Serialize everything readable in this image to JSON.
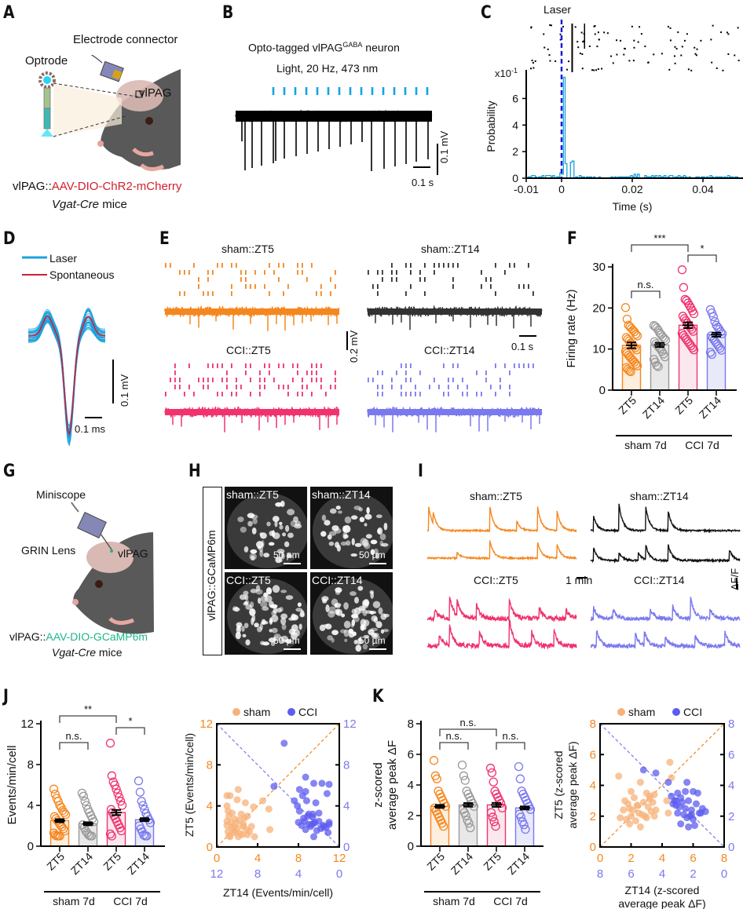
{
  "colors": {
    "sham_zt5": "#f5871f",
    "sham_zt14": "#333333",
    "cci_zt5": "#f0336e",
    "cci_zt14": "#7b79ee",
    "laser_blue": "#1ca2dc",
    "spont_red": "#cc1f3a",
    "laser_line": "#1a1adb",
    "gcamp_green": "#1fb58a",
    "chr2_red": "#d0202e",
    "sham_scatter": "#f7b27a",
    "cci_scatter": "#5c5cf0"
  },
  "panels": {
    "A": {
      "label": "A",
      "electrode_connector": "Electrode connector",
      "optrode": "Optrode",
      "region": "vlPAG",
      "construct_prefix": "vlPAG::",
      "construct": "AAV-DIO-ChR2-mCherry",
      "mouse_line_italic": "Vgat-Cre",
      "mouse_line_suffix": " mice"
    },
    "B": {
      "label": "B",
      "title_main": "Opto-tagged vlPAG",
      "title_sup": "GABA",
      "title_suffix": " neuron",
      "subtitle": "Light, 20 Hz, 473 nm",
      "pulses": 15,
      "scale_v": "0.1 mV",
      "scale_t": "0.1 s"
    },
    "C": {
      "label": "C",
      "laser_label": "Laser",
      "multiplier": "x10",
      "multiplier_exp": "-1"
    },
    "D": {
      "label": "D",
      "legend": [
        {
          "name": "Laser"
        },
        {
          "name": "Spontaneous"
        }
      ],
      "scale_v": "0.1 mV",
      "scale_t": "0.1 ms"
    },
    "E": {
      "label": "E",
      "groups": [
        {
          "title": "sham::ZT5"
        },
        {
          "title": "sham::ZT14"
        },
        {
          "title": "CCI::ZT5"
        },
        {
          "title": "CCI::ZT14"
        }
      ],
      "scale_v": "0.2 mV",
      "scale_t": "0.1 s"
    },
    "G": {
      "label": "G",
      "miniscope": "Miniscope",
      "grin": "GRIN Lens",
      "region": "vlPAG",
      "construct_prefix": "vlPAG::",
      "construct": "AAV-DIO-GCaMP6m",
      "mouse_line_italic": "Vgat-Cre",
      "mouse_line_suffix": " mice"
    },
    "H": {
      "label": "H",
      "side_label": "vlPAG::GCaMP6m",
      "images": [
        {
          "title": "sham::ZT5",
          "scale": "50 µm"
        },
        {
          "title": "sham::ZT14",
          "scale": "50 µm"
        },
        {
          "title": "CCI::ZT5",
          "scale": "50 µm"
        },
        {
          "title": "CCI::ZT14",
          "scale": "50 µm"
        }
      ]
    },
    "I": {
      "label": "I",
      "groups": [
        {
          "title": "sham::ZT5"
        },
        {
          "title": "sham::ZT14"
        },
        {
          "title": "CCI::ZT5"
        },
        {
          "title": "CCI::ZT14"
        }
      ],
      "scale_t": "1 min",
      "scale_f": "ΔF/F"
    },
    "J": {
      "label": "J"
    },
    "K": {
      "label": "K"
    }
  },
  "chart_data": [
    {
      "id": "C",
      "type": "bar",
      "title": "",
      "xlabel": "Time (s)",
      "ylabel": "Probability",
      "y_multiplier": "x10^-1",
      "xlim": [
        -0.01,
        0.05
      ],
      "ylim": [
        0,
        7.8
      ],
      "xticks": [
        -0.01,
        0,
        0.02,
        0.04
      ],
      "xtick_labels": [
        "-0.01",
        "0",
        "0.02",
        "0.04"
      ],
      "yticks": [
        0,
        2,
        4,
        6
      ],
      "laser_time": 0,
      "histogram_bins_start": -0.0095,
      "bin_width": 0.0005,
      "values": [
        0.1,
        0.1,
        0.2,
        0.2,
        0.1,
        0.0,
        0.1,
        0.1,
        0.2,
        0.0,
        0.2,
        0.2,
        0.2,
        0.1,
        0.2,
        0.0,
        0.1,
        0.1,
        0.4,
        0.3,
        7.6,
        1.1,
        0.0,
        0.0,
        1.2,
        1.3,
        0.0,
        0.1,
        0.0,
        0.2,
        0.1,
        0.1,
        0.0,
        0.1,
        0.1,
        0.1,
        0.0,
        0.1,
        0.0,
        0.0,
        0.1,
        0.0,
        0.0,
        0.0,
        0.0,
        0.0,
        0.0,
        0.1,
        0.0,
        0.1,
        0.0,
        0.1,
        0.1,
        0.1,
        0.1,
        0.1,
        0.1,
        0.1,
        0.2,
        0.1,
        0.3,
        0.1,
        0.3,
        0.0,
        0.0,
        0.0,
        0.2,
        0.1,
        0.1,
        0.1,
        0.2,
        0.1,
        0.2,
        0.0,
        0.2,
        0.1,
        0.1,
        0.2,
        0.0,
        0.1,
        0.2,
        0.2,
        0.0,
        0.1,
        0.1,
        0.2,
        0.1,
        0.1,
        0.2,
        0.1,
        0.0,
        0.1,
        0.0,
        0.0,
        0.0,
        0.1,
        0.1,
        0.0,
        0.1,
        0.1,
        0.0,
        0.1,
        0.0,
        0.2,
        0.1,
        0.0,
        0.1,
        0.1,
        0.1,
        0.1,
        0.0,
        0.1,
        0.0,
        0.2,
        0.1,
        0.1,
        0.0,
        0.1,
        0.1
      ]
    },
    {
      "id": "F",
      "type": "bar",
      "title": "",
      "ylabel": "Firing rate (Hz)",
      "ylim": [
        0,
        30
      ],
      "yticks": [
        0,
        10,
        20,
        30
      ],
      "categories": [
        "ZT5",
        "ZT14",
        "ZT5",
        "ZT14"
      ],
      "groups": [
        "sham 7d",
        "CCI 7d"
      ],
      "means": [
        10.9,
        11.0,
        15.8,
        13.5
      ],
      "sem": [
        0.7,
        0.5,
        0.7,
        0.5
      ],
      "points": [
        [
          20.1,
          17.3,
          15.8,
          15.4,
          15.0,
          14.6,
          14.2,
          13.6,
          13.2,
          12.8,
          12.4,
          12.0,
          11.5,
          11.2,
          10.7,
          10.3,
          9.8,
          9.4,
          9.0,
          8.5,
          8.1,
          7.6,
          7.2,
          6.8,
          6.3,
          5.9,
          5.5,
          5.1,
          4.7,
          4.5
        ],
        [
          15.7,
          15.5,
          15.1,
          14.6,
          13.9,
          13.5,
          13.0,
          12.6,
          12.2,
          11.8,
          11.3,
          10.9,
          10.4,
          10.0,
          9.4,
          8.8,
          8.1,
          7.5,
          6.8,
          6.0,
          5.7
        ],
        [
          29.3,
          25.0,
          22.1,
          21.8,
          21.2,
          20.6,
          20.0,
          19.3,
          18.6,
          18.0,
          17.4,
          16.9,
          16.3,
          15.8,
          15.3,
          14.8,
          14.3,
          13.8,
          13.3,
          12.8,
          12.3,
          11.8,
          11.3,
          10.8,
          10.3,
          9.8
        ],
        [
          19.6,
          18.8,
          17.9,
          16.7,
          15.8,
          15.3,
          14.8,
          14.2,
          13.7,
          13.2,
          12.7,
          12.2,
          11.7,
          11.2,
          10.7,
          10.2,
          9.7,
          9.2,
          8.7
        ]
      ],
      "significance": [
        {
          "from": 0,
          "to": 1,
          "label": "n.s."
        },
        {
          "from": 0,
          "to": 2,
          "label": "***"
        },
        {
          "from": 2,
          "to": 3,
          "label": "*"
        }
      ]
    },
    {
      "id": "J-bar",
      "type": "bar",
      "title": "",
      "ylabel": "Events/min/cell",
      "ylim": [
        0,
        12
      ],
      "yticks": [
        0,
        4,
        8,
        12
      ],
      "categories": [
        "ZT5",
        "ZT14",
        "ZT5",
        "ZT14"
      ],
      "groups": [
        "sham 7d",
        "CCI 7d"
      ],
      "means": [
        2.5,
        2.2,
        3.3,
        2.6
      ],
      "sem": [
        0.15,
        0.15,
        0.25,
        0.15
      ],
      "points": [
        [
          5.6,
          5.1,
          4.7,
          4.4,
          4.0,
          3.8,
          3.5,
          3.3,
          3.1,
          2.9,
          2.7,
          2.5,
          2.3,
          2.1,
          1.9,
          1.7,
          1.5,
          1.3,
          1.1,
          1.0,
          1.0,
          1.0
        ],
        [
          5.2,
          4.9,
          4.4,
          4.0,
          3.6,
          3.3,
          3.0,
          2.7,
          2.4,
          2.1,
          1.8,
          1.5,
          1.3,
          1.1,
          1.0,
          1.0
        ],
        [
          10.1,
          6.9,
          6.3,
          6.0,
          5.6,
          5.2,
          4.8,
          4.4,
          4.0,
          3.6,
          3.3,
          3.0,
          2.7,
          2.4,
          2.1,
          1.8,
          1.5,
          1.2,
          1.0
        ],
        [
          6.4,
          5.3,
          4.4,
          4.0,
          3.6,
          3.2,
          2.9,
          2.6,
          2.3,
          2.0,
          1.7,
          1.4,
          1.1,
          1.0,
          1.0
        ]
      ],
      "significance": [
        {
          "from": 0,
          "to": 1,
          "label": "n.s."
        },
        {
          "from": 0,
          "to": 2,
          "label": "**"
        },
        {
          "from": 2,
          "to": 3,
          "label": "*"
        }
      ]
    },
    {
      "id": "J-scatter",
      "type": "scatter",
      "title": "",
      "xlabel": "ZT14 (Events/min/cell)",
      "ylabel": "ZT5 (Events/min/cell)",
      "xlim": [
        0,
        12
      ],
      "ylim": [
        0,
        12
      ],
      "ticks_primary": [
        0,
        4,
        8,
        12
      ],
      "ticks_reversed": [
        12,
        8,
        4,
        0
      ],
      "legend": [
        "sham",
        "CCI"
      ],
      "legend_position": "top",
      "series": [
        {
          "name": "sham",
          "x": [
            1.0,
            1.3,
            1.0,
            2.0,
            2.1,
            1.1,
            2.8,
            3.6,
            4.5,
            5.1,
            5.2,
            1.2,
            1.5,
            2.4,
            3.0,
            1.8,
            1.0,
            1.4,
            2.2,
            2.6,
            3.4,
            1.6,
            2.0,
            2.9,
            1.1,
            1.7,
            2.5,
            3.2,
            1.3,
            2.1,
            3.7,
            1.0,
            1.9,
            2.7,
            1.5,
            3.0,
            2.3,
            1.2,
            1.8,
            2.6
          ],
          "y": [
            5.0,
            5.0,
            4.0,
            4.6,
            5.6,
            3.5,
            4.3,
            3.9,
            4.5,
            3.7,
            1.7,
            3.0,
            3.3,
            3.2,
            3.0,
            2.7,
            2.5,
            2.4,
            2.6,
            2.2,
            2.0,
            2.0,
            1.8,
            1.7,
            1.5,
            1.4,
            1.2,
            1.5,
            1.0,
            1.0,
            1.0,
            2.1,
            2.3,
            2.8,
            1.8,
            1.2,
            1.3,
            1.1,
            1.5,
            2.0
          ]
        },
        {
          "name": "CCI",
          "x": [
            6.6,
            5.6,
            8.7,
            9.5,
            10.3,
            11.0,
            10.8,
            8.1,
            8.7,
            8.4,
            8.8,
            7.6,
            7.9,
            8.1,
            9.0,
            9.4,
            9.7,
            10.0,
            9.4,
            8.0,
            8.5,
            9.0,
            9.5,
            10.0,
            10.5,
            11.0,
            8.3,
            8.7,
            9.2,
            9.6,
            10.2,
            10.7,
            11.0,
            8.6,
            9.5,
            10.4,
            9.8,
            10.9,
            8.9,
            9.3
          ],
          "y": [
            10.1,
            5.9,
            6.8,
            6.2,
            6.2,
            6.1,
            5.2,
            5.6,
            5.4,
            5.0,
            4.5,
            4.5,
            4.0,
            3.5,
            3.2,
            3.2,
            4.3,
            3.3,
            2.9,
            2.4,
            2.8,
            2.2,
            2.3,
            2.5,
            2.0,
            2.2,
            2.1,
            1.7,
            2.0,
            2.4,
            1.8,
            1.9,
            2.4,
            2.5,
            1.0,
            2.1,
            1.6,
            1.4,
            3.0,
            2.2
          ]
        }
      ],
      "diagonals": [
        "identity",
        "anti-identity"
      ]
    },
    {
      "id": "K-bar",
      "type": "bar",
      "title": "",
      "ylabel": "z-scored average peak ΔF",
      "ylim": [
        0,
        8
      ],
      "yticks": [
        0,
        2,
        4,
        6,
        8
      ],
      "categories": [
        "ZT5",
        "ZT14",
        "ZT5",
        "ZT14"
      ],
      "groups": [
        "sham 7d",
        "CCI 7d"
      ],
      "means": [
        2.6,
        2.7,
        2.7,
        2.5
      ],
      "sem": [
        0.1,
        0.12,
        0.13,
        0.1
      ],
      "points": [
        [
          5.6,
          4.6,
          4.4,
          3.6,
          3.4,
          3.2,
          3.0,
          2.8,
          2.6,
          2.5,
          2.3,
          2.1,
          1.9,
          1.7,
          1.5,
          1.3
        ],
        [
          5.3,
          4.6,
          4.3,
          3.6,
          3.4,
          3.2,
          3.0,
          2.8,
          2.6,
          2.4,
          2.2,
          2.0,
          1.7,
          1.5,
          1.2
        ],
        [
          5.1,
          4.8,
          4.2,
          3.6,
          3.4,
          3.2,
          3.0,
          2.8,
          2.5,
          2.2,
          1.9,
          1.6,
          1.3
        ],
        [
          5.2,
          4.4,
          3.6,
          3.4,
          3.2,
          3.0,
          2.8,
          2.6,
          2.4,
          2.1,
          1.9,
          1.6,
          1.4,
          1.1
        ]
      ],
      "significance": [
        {
          "from": 0,
          "to": 1,
          "label": "n.s."
        },
        {
          "from": 0,
          "to": 2,
          "label": "n.s."
        },
        {
          "from": 2,
          "to": 3,
          "label": "n.s."
        }
      ]
    },
    {
      "id": "K-scatter",
      "type": "scatter",
      "title": "",
      "xlabel": "ZT14 (z-scored average peak ΔF)",
      "ylabel": "ZT5 (z-scored average peak ΔF)",
      "xlim": [
        0,
        8
      ],
      "ylim": [
        0,
        8
      ],
      "ticks_primary": [
        0,
        2,
        4,
        6,
        8
      ],
      "ticks_reversed": [
        8,
        6,
        4,
        2,
        0
      ],
      "legend": [
        "sham",
        "CCI"
      ],
      "legend_position": "top",
      "series": [
        {
          "name": "sham",
          "x": [
            1.2,
            2.6,
            4.5,
            4.6,
            4.3,
            4.4,
            1.6,
            2.2,
            2.0,
            3.0,
            3.2,
            3.5,
            1.8,
            2.4,
            2.8,
            3.4,
            1.3,
            1.9,
            2.5,
            3.1,
            3.6,
            2.0,
            2.7,
            3.3,
            1.7,
            2.3,
            2.9,
            3.5,
            1.9,
            2.6,
            3.0,
            2.1,
            2.4,
            1.5,
            3.2
          ],
          "y": [
            4.6,
            4.2,
            5.5,
            4.5,
            3.0,
            2.2,
            3.0,
            3.2,
            3.6,
            3.5,
            3.3,
            3.4,
            2.8,
            2.7,
            2.9,
            2.9,
            1.9,
            2.5,
            2.2,
            2.6,
            2.4,
            2.0,
            2.1,
            2.3,
            1.8,
            1.7,
            2.0,
            2.0,
            1.5,
            1.3,
            1.9,
            2.4,
            2.7,
            2.4,
            3.1
          ]
        },
        {
          "name": "CCI",
          "x": [
            2.8,
            3.6,
            4.4,
            5.6,
            4.6,
            5.0,
            5.5,
            6.0,
            6.3,
            4.8,
            5.2,
            5.7,
            6.2,
            6.6,
            4.7,
            5.1,
            5.5,
            5.9,
            6.4,
            6.8,
            5.0,
            5.4,
            5.8,
            4.9,
            5.3,
            5.6,
            6.0,
            5.2,
            5.7,
            6.1,
            5.9,
            6.5,
            4.9
          ],
          "y": [
            5.0,
            4.8,
            4.2,
            4.2,
            3.3,
            3.5,
            3.6,
            3.6,
            3.5,
            3.0,
            3.2,
            3.0,
            2.8,
            2.5,
            2.8,
            2.6,
            2.5,
            2.4,
            2.2,
            2.3,
            2.2,
            2.1,
            2.0,
            2.7,
            2.9,
            1.9,
            1.8,
            1.5,
            1.3,
            1.4,
            2.1,
            2.2,
            3.0
          ]
        }
      ],
      "diagonals": [
        "identity",
        "anti-identity"
      ]
    }
  ]
}
